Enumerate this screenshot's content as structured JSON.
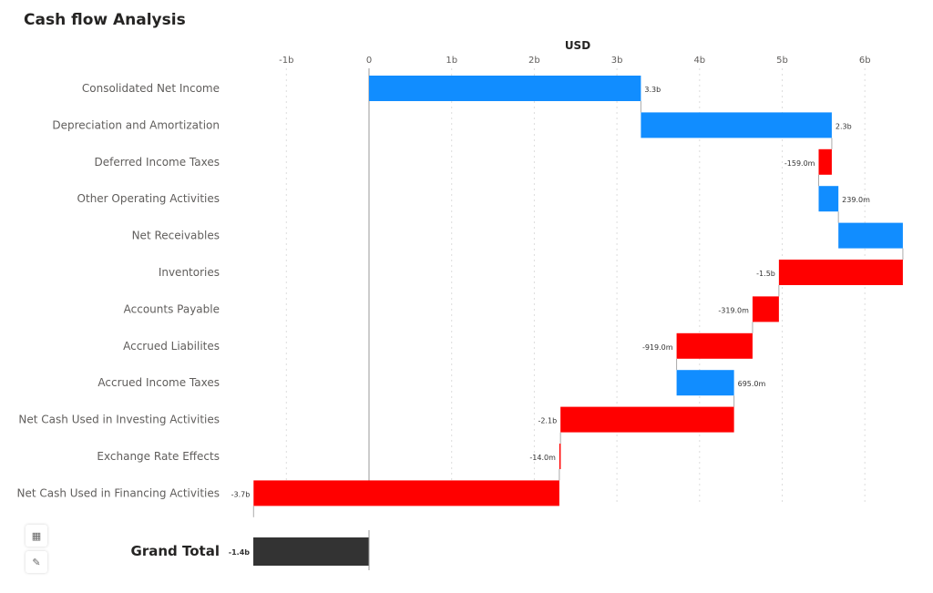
{
  "title": "Cash flow Analysis",
  "chart_data": {
    "type": "waterfall",
    "title": "Cash flow Analysis",
    "xlabel": "USD",
    "xlim": [
      -1.35,
      6.5
    ],
    "xticks": [
      -1,
      0,
      1,
      2,
      3,
      4,
      5,
      6
    ],
    "xtick_labels": [
      "-1b",
      "0",
      "1b",
      "2b",
      "3b",
      "4b",
      "5b",
      "6b"
    ],
    "grid": "vertical dotted",
    "colors": {
      "increase": "#118DFF",
      "decrease": "#FF0000",
      "total": "#333333"
    },
    "categories": [
      "Consolidated Net Income",
      "Depreciation and Amortization",
      "Deferred Income Taxes",
      "Other Operating Activities",
      "Net Receivables",
      "Inventories",
      "Accounts Payable",
      "Accrued Liabilites",
      "Accrued Income Taxes",
      "Net Cash Used in Investing Activities",
      "Exchange Rate Effects",
      "Net Cash Used in Financing Activities"
    ],
    "values": [
      3.29,
      2.31,
      -0.159,
      0.239,
      0.78,
      -1.5,
      -0.319,
      -0.919,
      0.695,
      -2.1,
      -0.014,
      -3.7
    ],
    "labels": [
      "3.3b",
      "2.3b",
      "-159.0m",
      "239.0m",
      "",
      "-1.5b",
      "-319.0m",
      "-919.0m",
      "695.0m",
      "-2.1b",
      "-14.0m",
      "-3.7b"
    ],
    "total": {
      "label": "Grand Total",
      "value": -1.4,
      "data_label": "-1.4b"
    }
  },
  "tools": {
    "table_icon": "table-icon",
    "edit_icon": "pencil-icon"
  }
}
